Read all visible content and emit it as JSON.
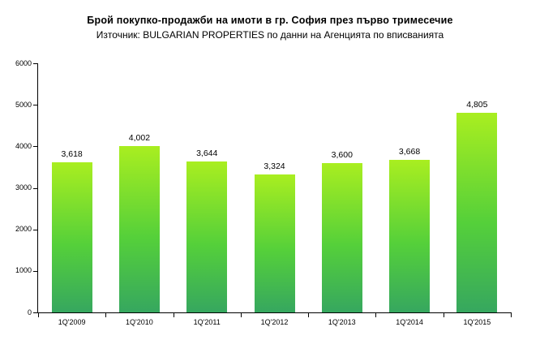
{
  "chart_data": {
    "type": "bar",
    "title": "Брой покупко-продажби на имоти в гр. София през първо тримесечие",
    "subtitle": "Източник: BULGARIAN PROPERTIES по данни на Агенцията по вписванията",
    "categories": [
      "1Q'2009",
      "1Q'2010",
      "1Q'2011",
      "1Q'2012",
      "1Q'2013",
      "1Q'2014",
      "1Q'2015"
    ],
    "values": [
      3618,
      4002,
      3644,
      3324,
      3600,
      3668,
      4805
    ],
    "value_labels": [
      "3,618",
      "4,002",
      "3,644",
      "3,324",
      "3,600",
      "3,668",
      "4,805"
    ],
    "xlabel": "",
    "ylabel": "",
    "ylim": [
      0,
      6000
    ],
    "y_ticks": [
      0,
      1000,
      2000,
      3000,
      4000,
      5000,
      6000
    ],
    "grid": false,
    "legend": "none",
    "colors": {
      "bar_gradient_top": "#a9ee20",
      "bar_gradient_mid": "#55d03a",
      "bar_gradient_bottom": "#36a75f",
      "axis": "#000000",
      "text": "#000000",
      "background": "#ffffff"
    }
  }
}
